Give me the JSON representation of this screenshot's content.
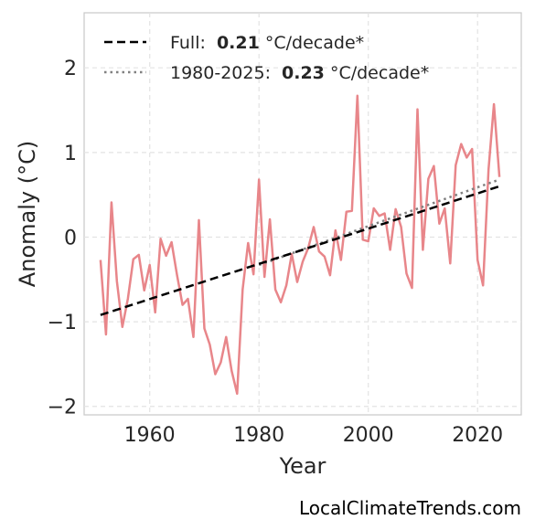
{
  "chart_data": {
    "type": "line",
    "xlabel": "Year",
    "ylabel": "Anomaly (°C)",
    "xlim": [
      1948,
      2028
    ],
    "ylim": [
      -2.1,
      2.65
    ],
    "xticks": [
      1960,
      1980,
      2000,
      2020
    ],
    "yticks": [
      -2,
      -1,
      0,
      1,
      2
    ],
    "ytick_labels": [
      "−2",
      "−1",
      "0",
      "1",
      "2"
    ],
    "grid": true,
    "legend_position": "top-left",
    "series": [
      {
        "color": "#e8868a",
        "x": [
          1951,
          1952,
          1953,
          1954,
          1955,
          1956,
          1957,
          1958,
          1959,
          1960,
          1961,
          1962,
          1963,
          1964,
          1965,
          1966,
          1967,
          1968,
          1969,
          1970,
          1971,
          1972,
          1973,
          1974,
          1975,
          1976,
          1977,
          1978,
          1979,
          1980,
          1981,
          1982,
          1983,
          1984,
          1985,
          1986,
          1987,
          1988,
          1989,
          1990,
          1991,
          1992,
          1993,
          1994,
          1995,
          1996,
          1997,
          1998,
          1999,
          2000,
          2001,
          2002,
          2003,
          2004,
          2005,
          2006,
          2007,
          2008,
          2009,
          2010,
          2011,
          2012,
          2013,
          2014,
          2015,
          2016,
          2017,
          2018,
          2019,
          2020,
          2021,
          2022,
          2023,
          2024
        ],
        "values": [
          -0.27,
          -1.15,
          0.41,
          -0.52,
          -1.06,
          -0.73,
          -0.26,
          -0.21,
          -0.63,
          -0.33,
          -0.89,
          -0.02,
          -0.22,
          -0.06,
          -0.45,
          -0.8,
          -0.73,
          -1.18,
          0.2,
          -1.08,
          -1.27,
          -1.62,
          -1.48,
          -1.18,
          -1.58,
          -1.85,
          -0.62,
          -0.07,
          -0.44,
          0.68,
          -0.47,
          0.21,
          -0.62,
          -0.77,
          -0.57,
          -0.2,
          -0.53,
          -0.29,
          -0.13,
          0.12,
          -0.17,
          -0.23,
          -0.45,
          0.08,
          -0.27,
          0.3,
          0.31,
          1.67,
          -0.03,
          -0.05,
          0.34,
          0.25,
          0.28,
          -0.15,
          0.33,
          0.12,
          -0.43,
          -0.6,
          1.51,
          -0.15,
          0.69,
          0.84,
          0.16,
          0.34,
          -0.31,
          0.85,
          1.1,
          0.94,
          1.04,
          -0.27,
          -0.57,
          0.8,
          1.57,
          0.71
        ]
      },
      {
        "name": "Full",
        "rate_label": "0.21",
        "unit_label": "°C/decade*",
        "style": "dashed",
        "color": "#000000",
        "x": [
          1951,
          2024
        ],
        "values": [
          -0.92,
          0.6
        ]
      },
      {
        "name": "1980-2025",
        "rate_label": "0.23",
        "unit_label": "°C/decade*",
        "style": "dotted",
        "color": "#808080",
        "x": [
          1980,
          2024
        ],
        "values": [
          -0.33,
          0.68
        ]
      }
    ]
  },
  "legend": {
    "full_name": "Full:",
    "full_rate": "0.21",
    "full_unit": "°C/decade*",
    "recent_name": "1980-2025:",
    "recent_rate": "0.23",
    "recent_unit": "°C/decade*"
  },
  "watermark": "LocalClimateTrends.com"
}
